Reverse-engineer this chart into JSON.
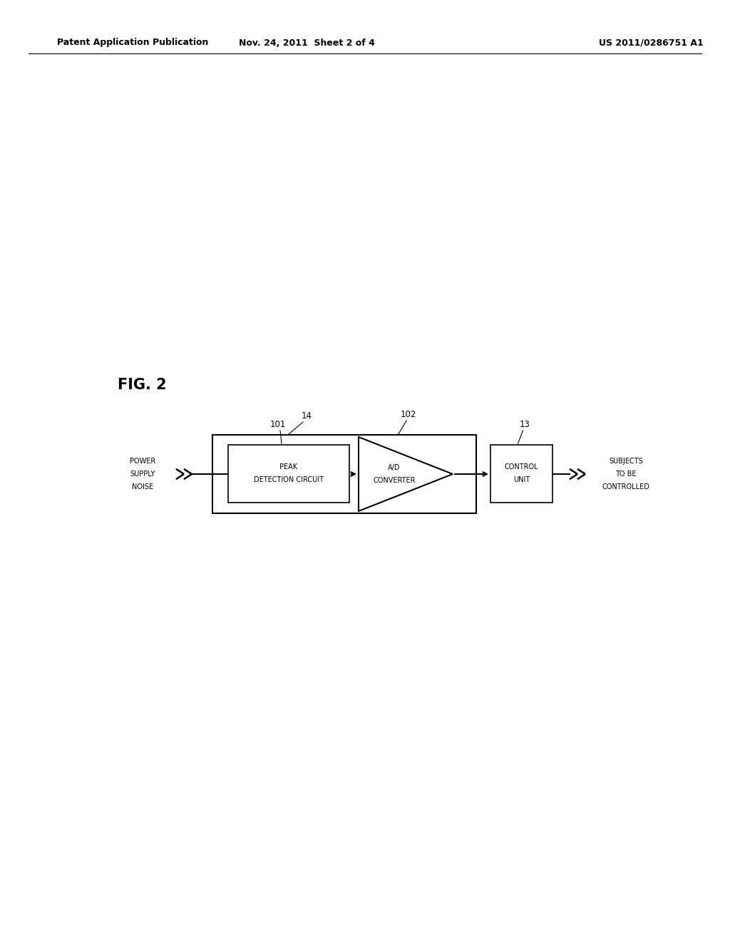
{
  "bg_color": "#ffffff",
  "header_left": "Patent Application Publication",
  "header_center": "Nov. 24, 2011  Sheet 2 of 4",
  "header_right": "US 2011/0286751 A1",
  "fig_label": "FIG. 2",
  "label_14": "14",
  "label_101": "101",
  "label_102": "102",
  "label_13": "13",
  "box_peak_text_line1": "PEAK",
  "box_peak_text_line2": "DETECTION CIRCUIT",
  "box_ad_text_line1": "A/D",
  "box_ad_text_line2": "CONVERTER",
  "box_control_text_line1": "CONTROL",
  "box_control_text_line2": "UNIT",
  "input_text": [
    "POWER",
    "SUPPLY",
    "NOISE"
  ],
  "output_text": [
    "SUBJECTS",
    "TO BE",
    "CONTROLLED"
  ],
  "font_size_header": 9,
  "font_size_fig": 15,
  "font_size_label": 8.5,
  "font_size_box": 7,
  "font_size_io": 7
}
